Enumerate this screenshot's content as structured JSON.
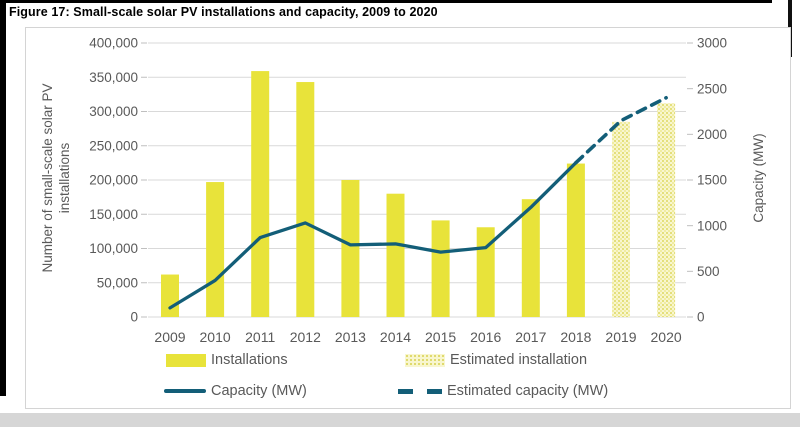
{
  "figure": {
    "title": "Figure 17: Small-scale solar PV installations and capacity, 2009 to 2020"
  },
  "colors": {
    "bar": "#e8e33a",
    "bar_estimated_bg": "#f8f6cf",
    "bar_estimated_dot": "#ddd65a",
    "line": "#135e78",
    "grid": "#d9d9d9",
    "tick_mark": "#bfbfbf",
    "axis_text": "#595959",
    "title_text": "#000000",
    "box_border": "#d4d4d4",
    "bottom_strip": "#d6d6d6"
  },
  "chart_data": {
    "type": "bar+line combo, dual axis",
    "categories": [
      "2009",
      "2010",
      "2011",
      "2012",
      "2013",
      "2014",
      "2015",
      "2016",
      "2017",
      "2018",
      "2019",
      "2020"
    ],
    "installations": [
      62000,
      197000,
      359000,
      343000,
      200000,
      180000,
      141000,
      131000,
      172000,
      224000,
      285000,
      312000
    ],
    "capacity_mw": [
      100,
      400,
      870,
      1030,
      790,
      800,
      710,
      760,
      1200,
      1690,
      2150,
      2400
    ],
    "estimated_start_index": 10,
    "left_axis": {
      "label": "Number of small-scale solar PV installations",
      "label_lines": [
        "Number of small-scale solar PV",
        "installations"
      ],
      "min": 0,
      "max": 400000,
      "step": 50000,
      "tick_labels": [
        "0",
        "50,000",
        "100,000",
        "150,000",
        "200,000",
        "250,000",
        "300,000",
        "350,000",
        "400,000"
      ]
    },
    "right_axis": {
      "label": "Capacity (MW)",
      "min": 0,
      "max": 3000,
      "step": 500,
      "tick_labels": [
        "0",
        "500",
        "1000",
        "1500",
        "2000",
        "2500",
        "3000"
      ]
    },
    "grid": true,
    "legend_position": "bottom",
    "legend": {
      "installations": "Installations",
      "estimated_installation": "Estimated installation",
      "capacity": "Capacity (MW)",
      "estimated_capacity": "Estimated capacity (MW)"
    }
  }
}
